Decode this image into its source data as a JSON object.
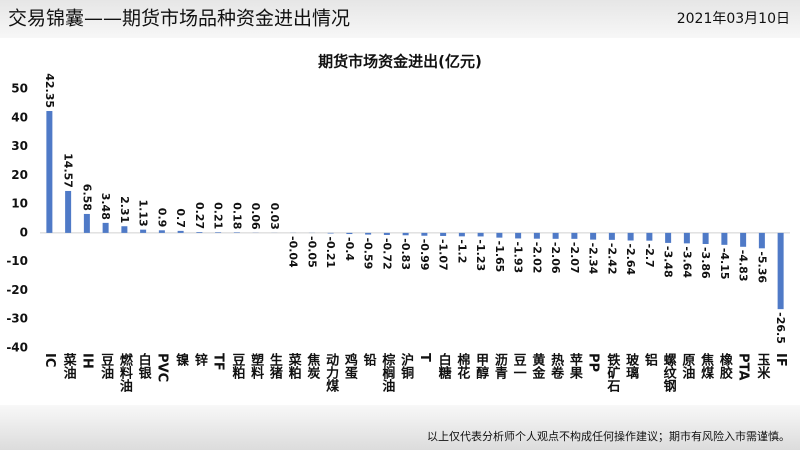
{
  "header": {
    "title": "交易锦囊——期货市场品种资金进出情况",
    "date": "2021年03月10日"
  },
  "chart_data": {
    "type": "bar",
    "title": "期货市场资金进出(亿元)",
    "categories": [
      "IC",
      "菜油",
      "IH",
      "豆油",
      "燃料油",
      "白银",
      "PVC",
      "镍",
      "锌",
      "TF",
      "豆粕",
      "塑料",
      "生猪",
      "菜粕",
      "焦炭",
      "动力煤",
      "鸡蛋",
      "铅",
      "棕榈油",
      "沪铜",
      "T",
      "白糖",
      "棉花",
      "甲醇",
      "沥青",
      "豆一",
      "黄金",
      "热卷",
      "苹果",
      "PP",
      "铁矿石",
      "玻璃",
      "铝",
      "螺纹钢",
      "原油",
      "焦煤",
      "橡胶",
      "PTA",
      "玉米",
      "IF"
    ],
    "values": [
      42.35,
      14.57,
      6.58,
      3.48,
      2.31,
      1.13,
      0.9,
      0.7,
      0.27,
      0.21,
      0.18,
      0.06,
      0.03,
      -0.04,
      -0.05,
      -0.21,
      -0.4,
      -0.59,
      -0.72,
      -0.83,
      -0.99,
      -1.07,
      -1.2,
      -1.23,
      -1.65,
      -1.93,
      -2.02,
      -2.06,
      -2.07,
      -2.34,
      -2.42,
      -2.64,
      -2.7,
      -3.48,
      -3.64,
      -3.86,
      -4.15,
      -4.83,
      -5.36,
      -26.5
    ],
    "color": "#4f7ac7",
    "ylim": [
      -40,
      50
    ],
    "yticks": [
      -40,
      -30,
      -20,
      -10,
      0,
      10,
      20,
      30,
      40,
      50
    ],
    "grid": false
  },
  "footer": "以上仅代表分析师个人观点不构成任何操作建议；期市有风险入市需谨慎。"
}
